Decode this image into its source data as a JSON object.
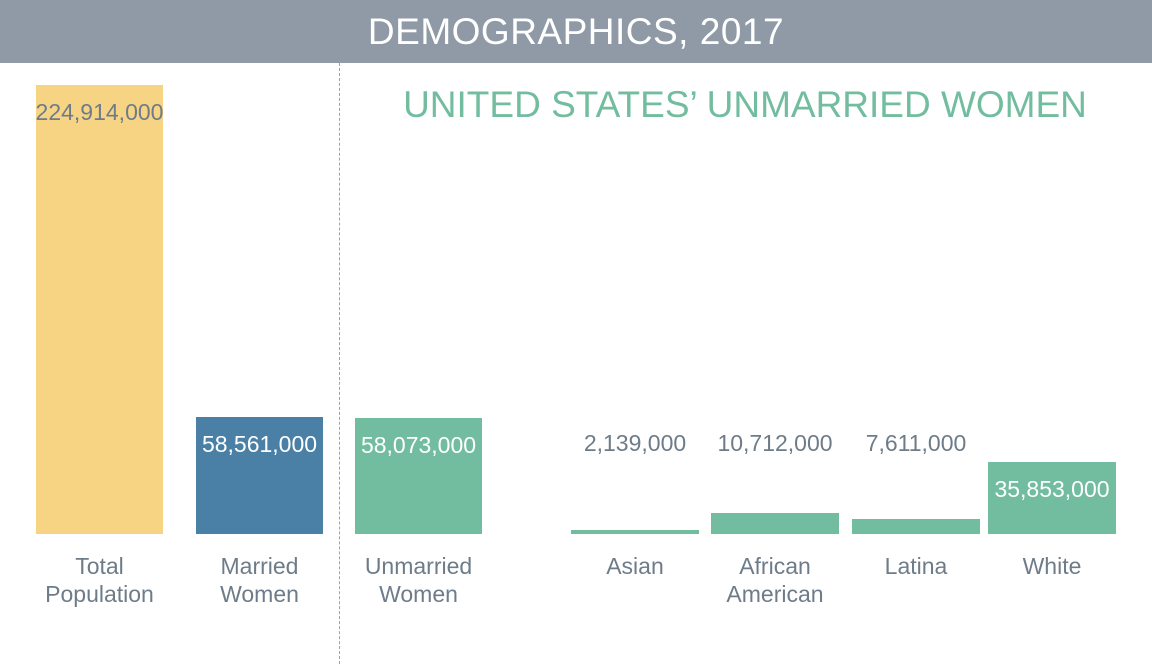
{
  "header": {
    "title": "DEMOGRAPHICS, 2017"
  },
  "colors": {
    "header_bg": "#8f9aa6",
    "total": "#f7d384",
    "married": "#4a80a6",
    "unmarried": "#72bd9f",
    "label_text": "#6e7c89"
  },
  "chart_data": {
    "type": "bar",
    "title": "DEMOGRAPHICS, 2017",
    "subtitle": "UNITED STATES’ UNMARRIED WOMEN",
    "bars": [
      {
        "label_lines": [
          "Total",
          "Population"
        ],
        "value": 224914000,
        "value_label": "224,914,000",
        "color": "#f7d384"
      },
      {
        "label_lines": [
          "Married",
          "Women"
        ],
        "value": 58561000,
        "value_label": "58,561,000",
        "color": "#4a80a6"
      },
      {
        "label_lines": [
          "Unmarried",
          "Women"
        ],
        "value": 58073000,
        "value_label": "58,073,000",
        "color": "#72bd9f"
      },
      {
        "label_lines": [
          "Asian"
        ],
        "value": 2139000,
        "value_label": "2,139,000",
        "color": "#72bd9f"
      },
      {
        "label_lines": [
          "African",
          "American"
        ],
        "value": 10712000,
        "value_label": "10,712,000",
        "color": "#72bd9f"
      },
      {
        "label_lines": [
          "Latina"
        ],
        "value": 7611000,
        "value_label": "7,611,000",
        "color": "#72bd9f"
      },
      {
        "label_lines": [
          "White"
        ],
        "value": 35853000,
        "value_label": "35,853,000",
        "color": "#72bd9f"
      }
    ]
  }
}
